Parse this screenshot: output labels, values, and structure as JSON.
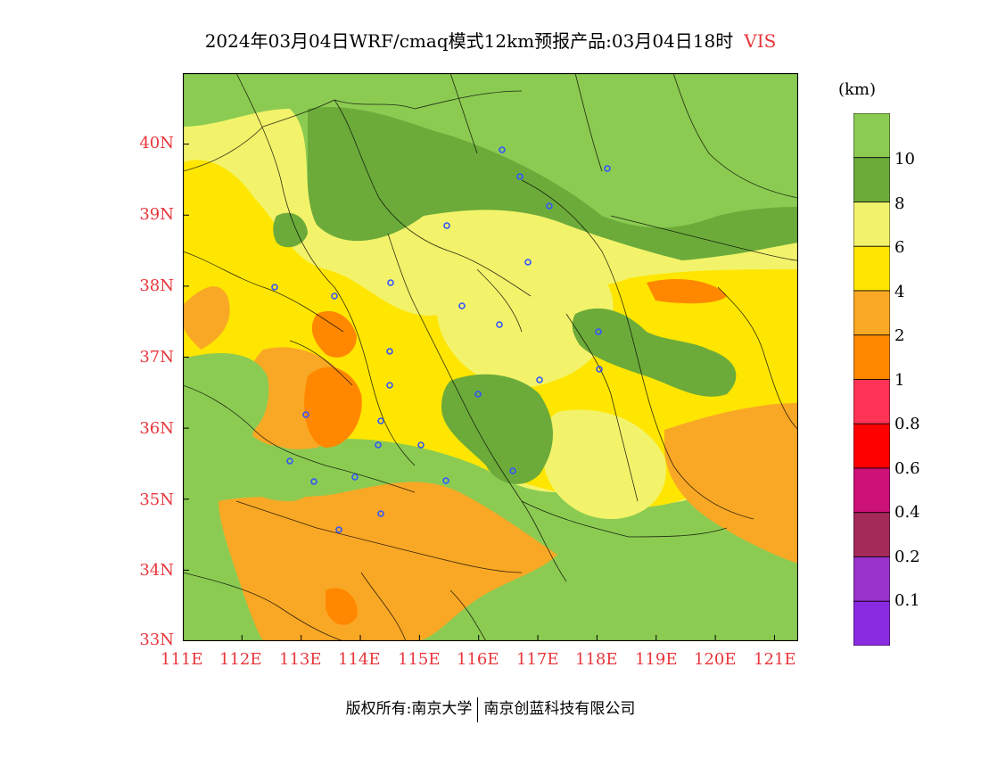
{
  "title": {
    "main": "2024年03月04日WRF/cmaq模式12km预报产品:03月04日18时",
    "variable": "VIS"
  },
  "colors": {
    "axis_label": "#e8363b",
    "station_marker": "#3355ff"
  },
  "map": {
    "lat_labels": [
      "40N",
      "39N",
      "38N",
      "37N",
      "36N",
      "35N",
      "34N",
      "33N"
    ],
    "lon_labels": [
      "111E",
      "112E",
      "113E",
      "114E",
      "115E",
      "116E",
      "117E",
      "118E",
      "119E",
      "120E",
      "121E"
    ],
    "lat_range": [
      33,
      41
    ],
    "lon_range": [
      111,
      121.4
    ]
  },
  "legend": {
    "unit": "(km)",
    "labels": [
      "10",
      "8",
      "6",
      "4",
      "2",
      "1",
      "0.8",
      "0.6",
      "0.4",
      "0.2",
      "0.1"
    ],
    "colors": [
      "#8ccb52",
      "#6cab3a",
      "#f2f36a",
      "#ffe600",
      "#f9a825",
      "#ff8800",
      "#ff3355",
      "#ff0000",
      "#cc1177",
      "#a32a59",
      "#9933cc",
      "#8a2be2"
    ]
  },
  "footer": {
    "left": "版权所有:南京大学",
    "right": "南京创蓝科技有限公司"
  }
}
